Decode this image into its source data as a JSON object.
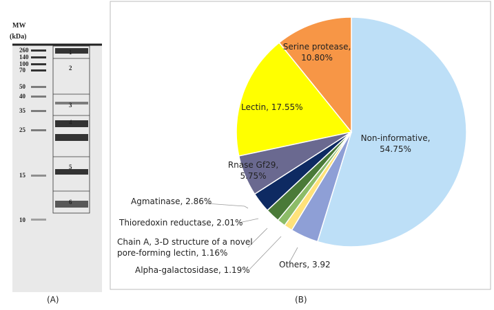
{
  "gel": {
    "mw_label": "MW",
    "unit_label": "(kDa)",
    "markers": [
      260,
      140,
      100,
      70,
      50,
      40,
      35,
      25,
      15,
      10
    ],
    "bands": [
      1,
      2,
      3,
      4,
      5,
      6
    ],
    "panel_label": "(A)"
  },
  "chart_data": {
    "type": "pie",
    "panel_label": "(B)",
    "categories": [
      "Non-informative, 54.75%",
      "Others, 3.92",
      "Alpha-galactosidase, 1.19%",
      "Chain A, 3-D structure of a novel pore-forming lectin, 1.16%",
      "Thioredoxin reductase, 2.01%",
      "Agmatinase, 2.86%",
      "Rnase Gf29, 5.75%",
      "Lectin, 17.55%",
      "Serine protease, 10.80%"
    ],
    "values": [
      54.75,
      3.92,
      1.19,
      1.16,
      2.01,
      2.86,
      5.75,
      17.55,
      10.8
    ],
    "colors": [
      "#bddff7",
      "#8e9fd6",
      "#ffe27a",
      "#8cbc68",
      "#4a7a38",
      "#0e2a62",
      "#6a6990",
      "#ffff00",
      "#f79646"
    ]
  }
}
